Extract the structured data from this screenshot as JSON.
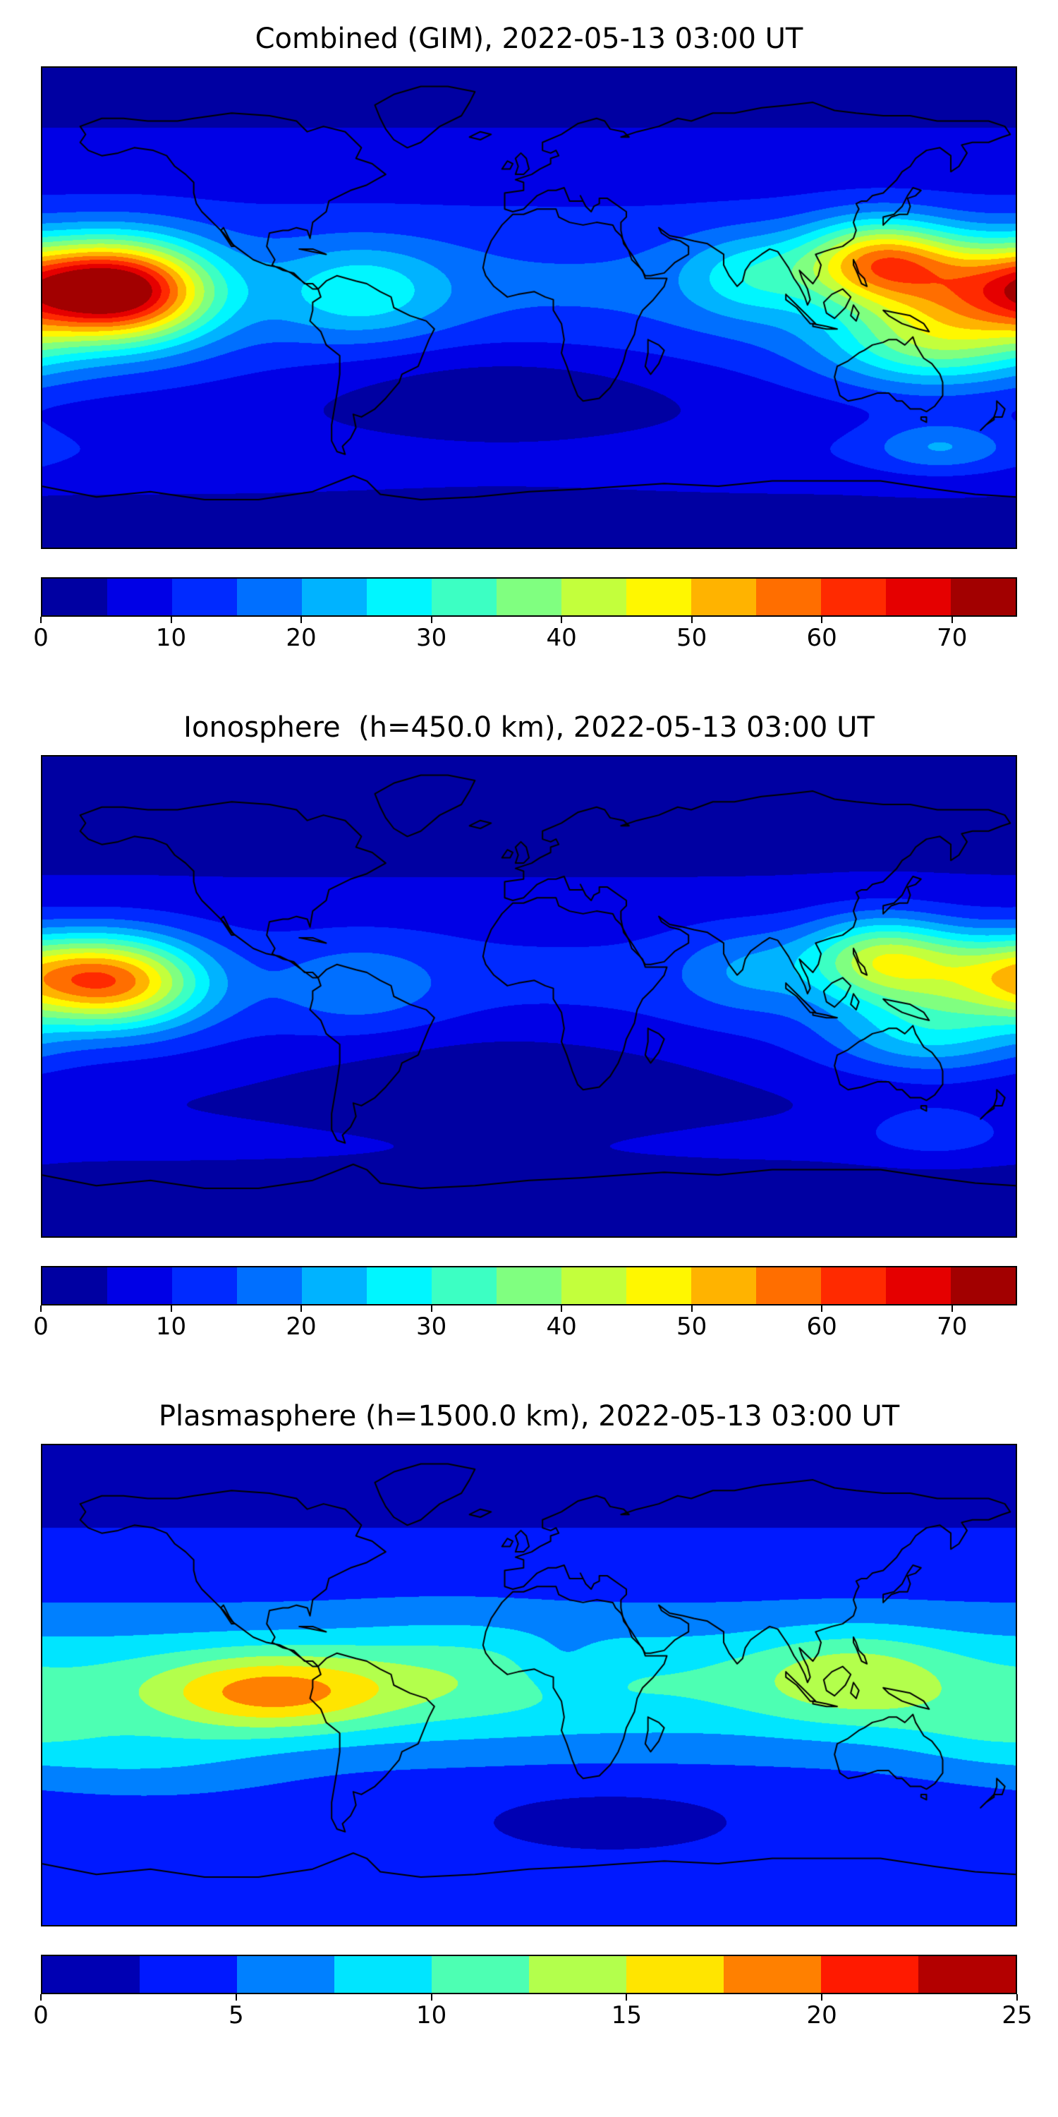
{
  "figure": {
    "background": "#ffffff",
    "num_panels": 3
  },
  "chart_data": [
    {
      "type": "heatmap",
      "title": "Combined (GIM), 2022-05-13 03:00 UT",
      "projection": "equirectangular",
      "lon_range": [
        -180,
        180
      ],
      "lat_range": [
        -90,
        90
      ],
      "overlay": "world-coastlines",
      "colormap": "jet",
      "vmin": 0,
      "vmax": 75,
      "level_step": 5,
      "colorbar_orientation": "horizontal",
      "colorbar_ticks": [
        0,
        10,
        20,
        30,
        40,
        50,
        60,
        70
      ],
      "field": {
        "base": 4,
        "bands": [
          {
            "lat": 5,
            "amp": 12,
            "sigma": 28
          },
          {
            "lat": -55,
            "amp": 4,
            "sigma": 8
          }
        ],
        "blobs": [
          {
            "lon": -148,
            "lat": 6,
            "amp": 48,
            "slon": 22,
            "slat": 13
          },
          {
            "lon": 178,
            "lat": 8,
            "amp": 36,
            "slon": 26,
            "slat": 12
          },
          {
            "lon": 130,
            "lat": 17,
            "amp": 40,
            "slon": 20,
            "slat": 11
          },
          {
            "lon": 150,
            "lat": -13,
            "amp": 24,
            "slon": 28,
            "slat": 12
          },
          {
            "lon": -62,
            "lat": 6,
            "amp": 14,
            "slon": 22,
            "slat": 12
          },
          {
            "lon": 82,
            "lat": 12,
            "amp": 13,
            "slon": 18,
            "slat": 11
          },
          {
            "lon": 152,
            "lat": -52,
            "amp": 11,
            "slon": 18,
            "slat": 7
          },
          {
            "lon": -10,
            "lat": -32,
            "amp": -8,
            "slon": 50,
            "slat": 16
          }
        ]
      }
    },
    {
      "type": "heatmap",
      "title": "Ionosphere  (h=450.0 km), 2022-05-13 03:00 UT",
      "projection": "equirectangular",
      "lon_range": [
        -180,
        180
      ],
      "lat_range": [
        -90,
        90
      ],
      "overlay": "world-coastlines",
      "colormap": "jet",
      "vmin": 0,
      "vmax": 75,
      "level_step": 5,
      "colorbar_orientation": "horizontal",
      "colorbar_ticks": [
        0,
        10,
        20,
        30,
        40,
        50,
        60,
        70
      ],
      "field": {
        "base": 2.5,
        "bands": [
          {
            "lat": 3,
            "amp": 9,
            "sigma": 26
          },
          {
            "lat": -55,
            "amp": 3,
            "sigma": 8
          }
        ],
        "blobs": [
          {
            "lon": -150,
            "lat": 5,
            "amp": 34,
            "slon": 22,
            "slat": 12
          },
          {
            "lon": 178,
            "lat": 8,
            "amp": 28,
            "slon": 26,
            "slat": 11
          },
          {
            "lon": 130,
            "lat": 14,
            "amp": 30,
            "slon": 20,
            "slat": 11
          },
          {
            "lon": 148,
            "lat": -14,
            "amp": 16,
            "slon": 26,
            "slat": 11
          },
          {
            "lon": -62,
            "lat": 4,
            "amp": 8,
            "slon": 22,
            "slat": 12
          },
          {
            "lon": 80,
            "lat": 10,
            "amp": 9,
            "slon": 18,
            "slat": 11
          },
          {
            "lon": 150,
            "lat": -50,
            "amp": 8,
            "slon": 18,
            "slat": 7
          },
          {
            "lon": -10,
            "lat": -30,
            "amp": -6,
            "slon": 50,
            "slat": 16
          }
        ]
      }
    },
    {
      "type": "heatmap",
      "title": "Plasmasphere (h=1500.0 km), 2022-05-13 03:00 UT",
      "projection": "equirectangular",
      "lon_range": [
        -180,
        180
      ],
      "lat_range": [
        -90,
        90
      ],
      "overlay": "world-coastlines",
      "colormap": "jet",
      "vmin": 0,
      "vmax": 25,
      "level_step": 2.5,
      "colorbar_orientation": "horizontal",
      "colorbar_ticks": [
        0,
        5,
        10,
        15,
        20,
        25
      ],
      "field": {
        "base": 3.5,
        "bands": [
          {
            "lat": 0,
            "amp": 6.5,
            "sigma": 18
          },
          {
            "lat": 75,
            "amp": -2.5,
            "sigma": 12
          }
        ],
        "blobs": [
          {
            "lon": -95,
            "lat": -3,
            "amp": 9,
            "slon": 30,
            "slat": 10
          },
          {
            "lon": 120,
            "lat": 3,
            "amp": 5,
            "slon": 25,
            "slat": 12
          },
          {
            "lon": -30,
            "lat": 5,
            "amp": 2,
            "slon": 30,
            "slat": 15
          },
          {
            "lon": 30,
            "lat": -50,
            "amp": -2,
            "slon": 40,
            "slat": 10
          },
          {
            "lon": -140,
            "lat": -28,
            "amp": 2.5,
            "slon": 35,
            "slat": 10
          },
          {
            "lon": 170,
            "lat": -18,
            "amp": 2.5,
            "slon": 25,
            "slat": 10
          },
          {
            "lon": 12,
            "lat": 7,
            "amp": -2.2,
            "slon": 12,
            "slat": 8
          }
        ]
      }
    }
  ]
}
